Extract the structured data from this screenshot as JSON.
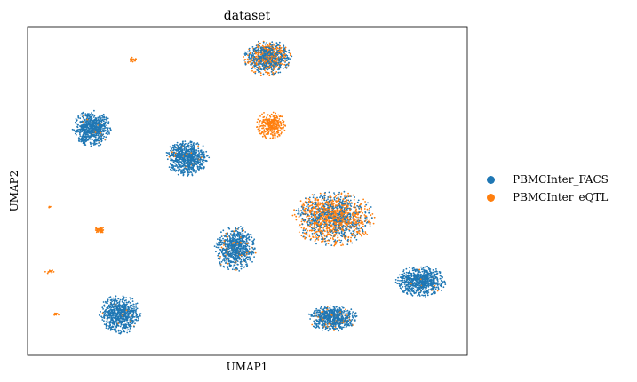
{
  "chart_data": {
    "type": "scatter",
    "title": "dataset",
    "xlabel": "UMAP1",
    "ylabel": "UMAP2",
    "xticks": false,
    "yticks": false,
    "grid": false,
    "legend_position": "right",
    "series": [
      {
        "name": "PBMCInter_FACS",
        "color": "#1f77b4"
      },
      {
        "name": "PBMCInter_eQTL",
        "color": "#ff7f0e"
      }
    ],
    "clusters": [
      {
        "cx": 0.546,
        "cy": 0.905,
        "rx": 0.055,
        "ry": 0.055,
        "n": 900,
        "eqtl_frac": 0.35
      },
      {
        "cx": 0.146,
        "cy": 0.69,
        "rx": 0.045,
        "ry": 0.055,
        "n": 700,
        "eqtl_frac": 0.03
      },
      {
        "cx": 0.363,
        "cy": 0.6,
        "rx": 0.05,
        "ry": 0.055,
        "n": 750,
        "eqtl_frac": 0.02
      },
      {
        "cx": 0.472,
        "cy": 0.325,
        "rx": 0.048,
        "ry": 0.07,
        "n": 750,
        "eqtl_frac": 0.1
      },
      {
        "cx": 0.21,
        "cy": 0.125,
        "rx": 0.048,
        "ry": 0.06,
        "n": 700,
        "eqtl_frac": 0.02
      },
      {
        "cx": 0.694,
        "cy": 0.113,
        "rx": 0.058,
        "ry": 0.04,
        "n": 700,
        "eqtl_frac": 0.08
      },
      {
        "cx": 0.894,
        "cy": 0.225,
        "rx": 0.058,
        "ry": 0.048,
        "n": 750,
        "eqtl_frac": 0.03
      },
      {
        "cx": 0.695,
        "cy": 0.417,
        "rx": 0.095,
        "ry": 0.085,
        "n": 1500,
        "eqtl_frac": 0.55
      },
      {
        "cx": 0.553,
        "cy": 0.7,
        "rx": 0.035,
        "ry": 0.043,
        "n": 320,
        "eqtl_frac": 1.0
      },
      {
        "cx": 0.165,
        "cy": 0.383,
        "rx": 0.012,
        "ry": 0.012,
        "n": 40,
        "eqtl_frac": 1.0
      },
      {
        "cx": 0.24,
        "cy": 0.9,
        "rx": 0.01,
        "ry": 0.008,
        "n": 20,
        "eqtl_frac": 1.0
      },
      {
        "cx": 0.05,
        "cy": 0.45,
        "rx": 0.005,
        "ry": 0.004,
        "n": 5,
        "eqtl_frac": 1.0
      },
      {
        "cx": 0.05,
        "cy": 0.255,
        "rx": 0.01,
        "ry": 0.008,
        "n": 12,
        "eqtl_frac": 1.0
      },
      {
        "cx": 0.065,
        "cy": 0.125,
        "rx": 0.007,
        "ry": 0.006,
        "n": 8,
        "eqtl_frac": 1.0
      }
    ]
  }
}
